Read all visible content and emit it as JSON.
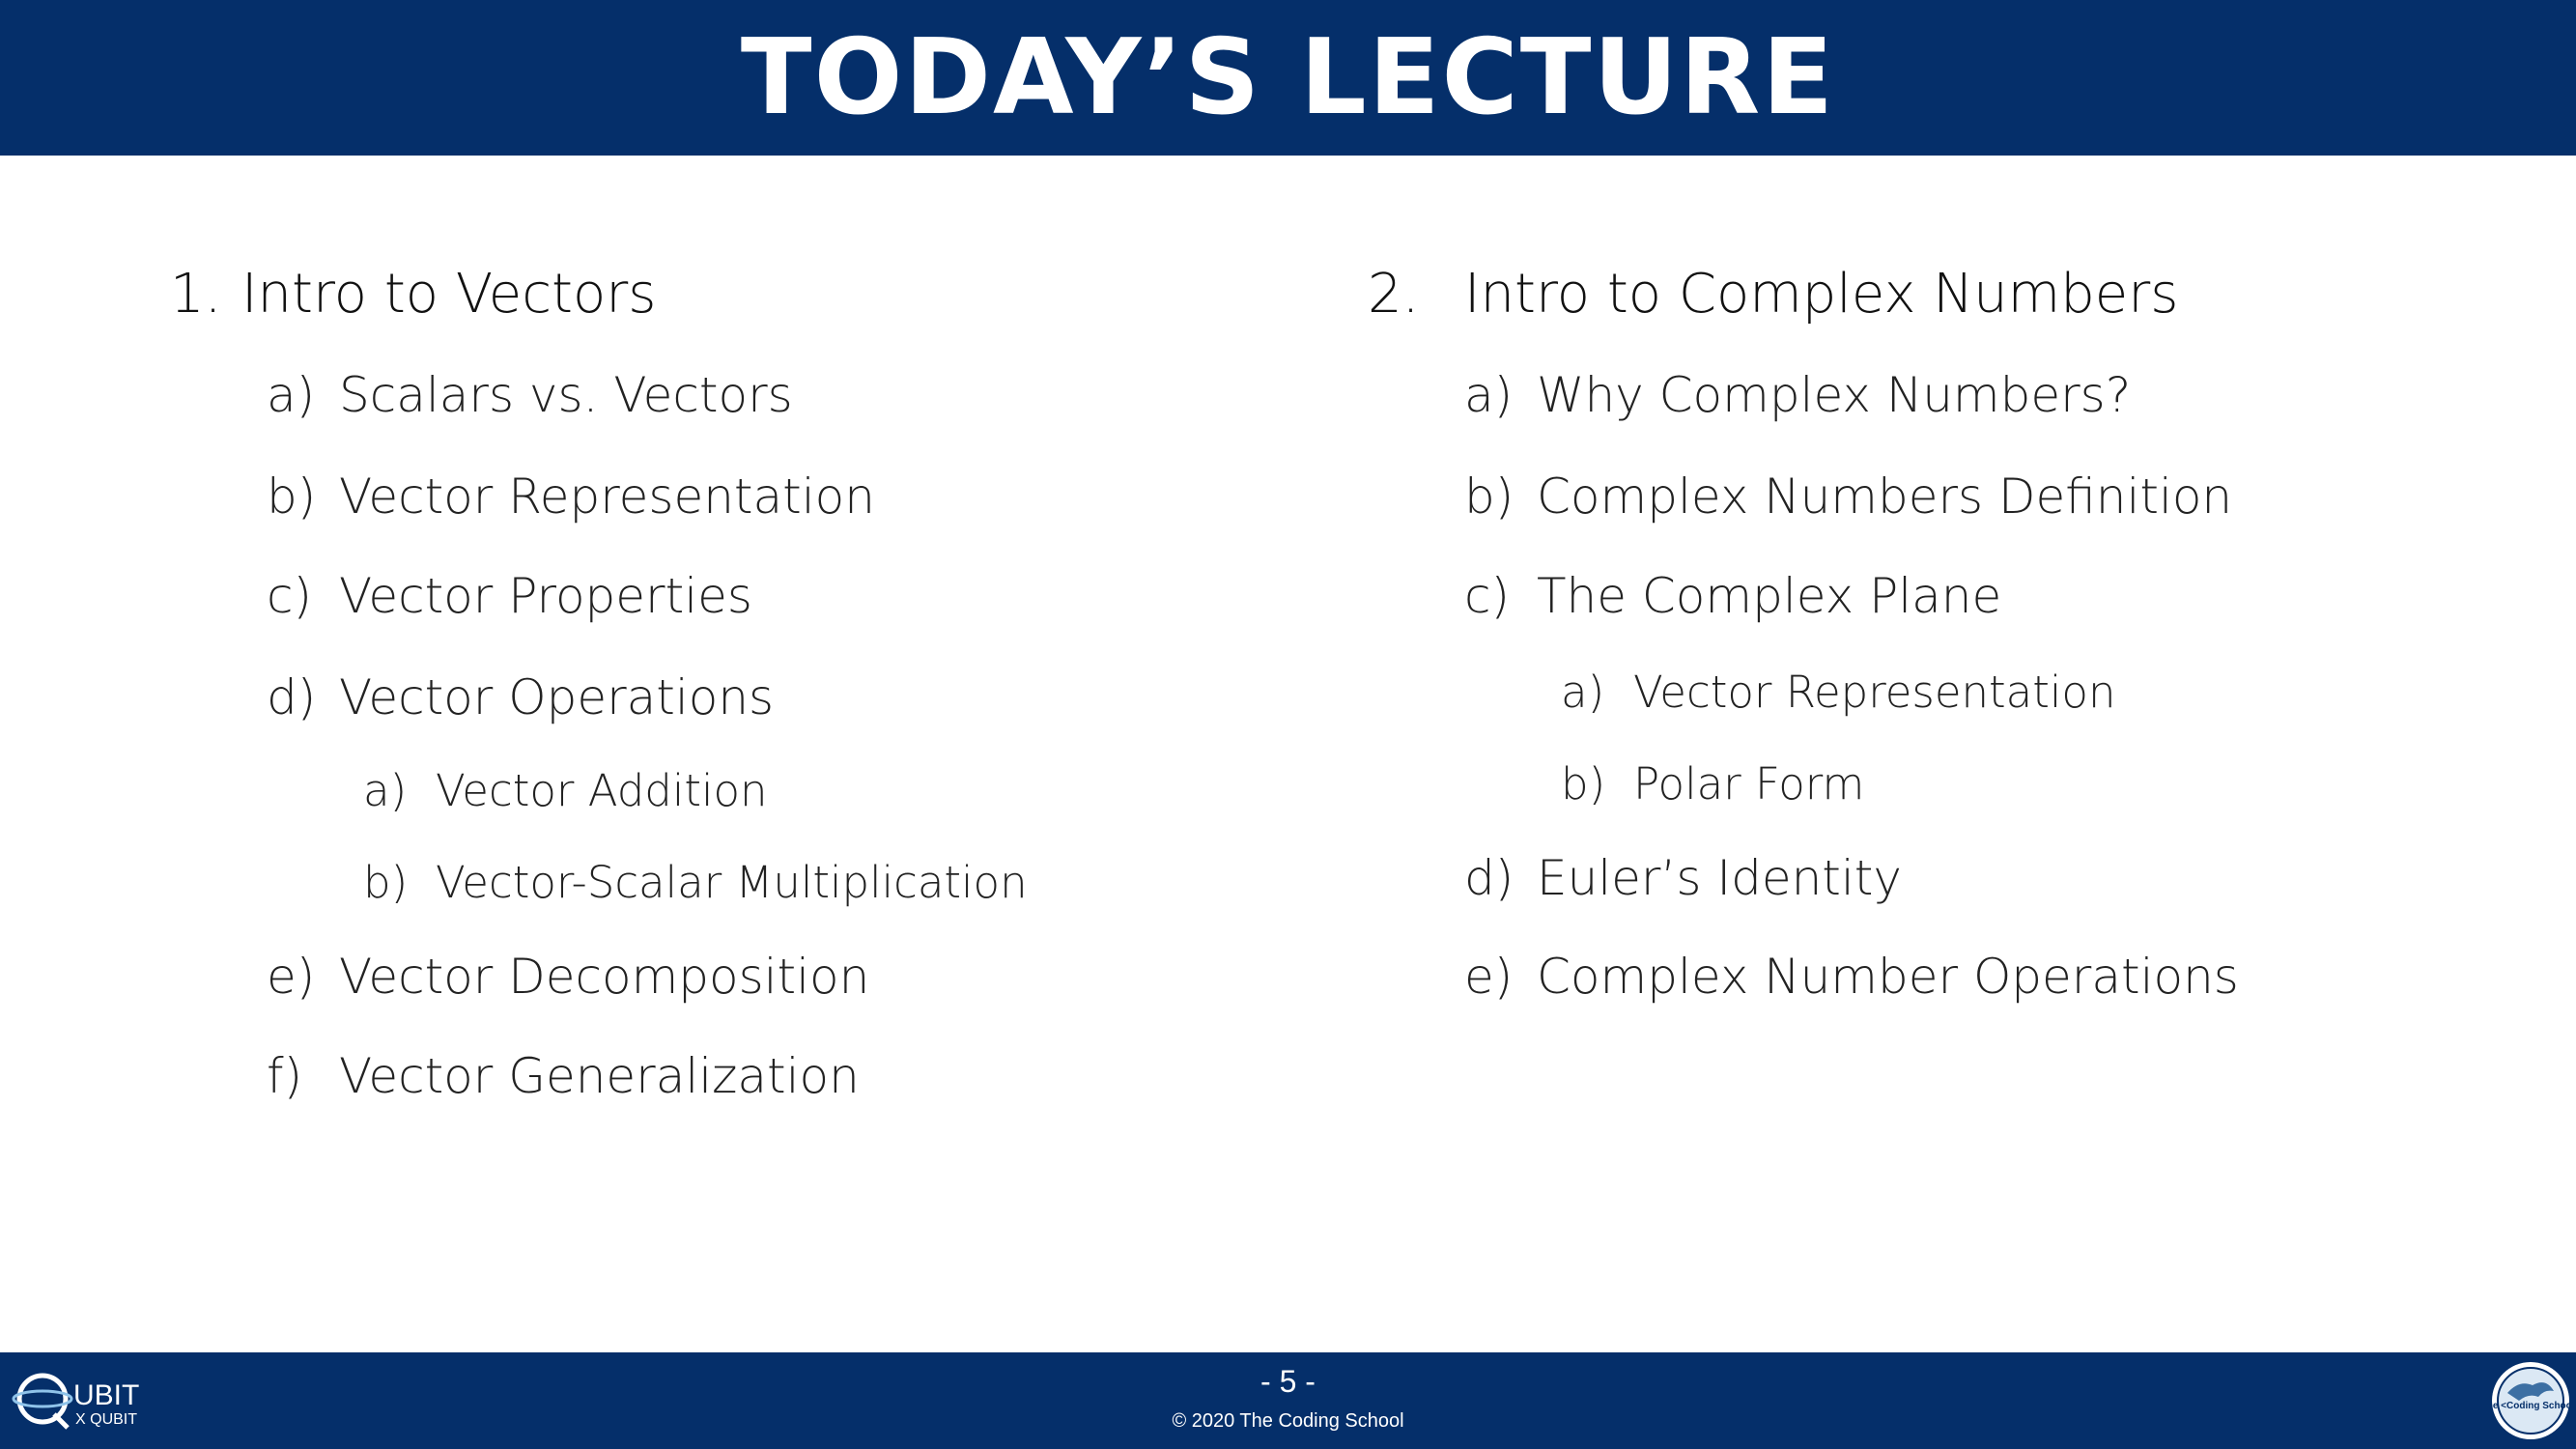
{
  "header": {
    "title": "TODAY’S LECTURE"
  },
  "left": {
    "number": "1.",
    "title": "Intro to Vectors",
    "items": [
      {
        "marker": "a)",
        "label": "Scalars vs. Vectors"
      },
      {
        "marker": "b)",
        "label": "Vector Representation"
      },
      {
        "marker": "c)",
        "label": "Vector Properties"
      },
      {
        "marker": "d)",
        "label": "Vector Operations"
      },
      {
        "marker": "a)",
        "label": "Vector Addition"
      },
      {
        "marker": "b)",
        "label": "Vector-Scalar Multiplication"
      },
      {
        "marker": "e)",
        "label": "Vector Decomposition"
      },
      {
        "marker": "f)",
        "label": "Vector Generalization"
      }
    ]
  },
  "right": {
    "number": "2.",
    "title": "Intro to Complex Numbers",
    "items": [
      {
        "marker": "a)",
        "label": "Why Complex Numbers?"
      },
      {
        "marker": "b)",
        "label": "Complex Numbers Definition"
      },
      {
        "marker": "c)",
        "label": "The Complex Plane"
      },
      {
        "marker": "a)",
        "label": "Vector Representation"
      },
      {
        "marker": "b)",
        "label": "Polar Form"
      },
      {
        "marker": "d)",
        "label": "Euler’s Identity"
      },
      {
        "marker": "e)",
        "label": "Complex Number Operations"
      }
    ]
  },
  "footer": {
    "page": "- 5 -",
    "copyright": "© 2020 The Coding School",
    "logo_left_text": "UBIT",
    "logo_left_sub": "X QUBIT",
    "logo_right_text": "The <Coding School>"
  },
  "colors": {
    "brand": "#052f6a",
    "text": "#1a1a1a",
    "white": "#ffffff"
  }
}
